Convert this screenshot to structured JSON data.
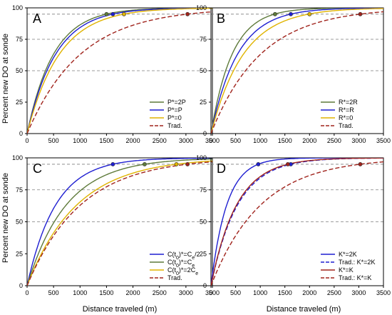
{
  "figure": {
    "ylabel": "Percent new DO at sonde",
    "xlabel": "Distance traveled (m)"
  },
  "colors": {
    "green": "#5e7a3a",
    "blue": "#1f1fd1",
    "yellow": "#e0b400",
    "red": "#a0231c",
    "axis": "#000000",
    "refline": "#7f7f7f"
  },
  "chart_data": [
    {
      "type": "line",
      "panel_label": "A",
      "xlim": [
        0,
        3500
      ],
      "ylim": [
        0,
        100
      ],
      "x_ticks": [
        "0",
        "500",
        "1000",
        "1500",
        "2000",
        "2500",
        "3000",
        "3500"
      ],
      "y_ticks": [
        "0",
        "25",
        "50",
        "75",
        "100"
      ],
      "reference_lines_y": [
        50,
        75,
        95
      ],
      "legend_position": "bottom-right",
      "series": [
        {
          "name": "P*=2P",
          "color": "green",
          "dash": "solid",
          "tau": 500,
          "start": 0,
          "marker_x": 1500
        },
        {
          "name": "P*=P",
          "color": "blue",
          "dash": "solid",
          "tau": 540,
          "start": 0,
          "marker_x": 1620
        },
        {
          "name": "P*=0",
          "color": "yellow",
          "dash": "solid",
          "tau": 610,
          "start": 0,
          "marker_x": 1830
        },
        {
          "name": "Trad.",
          "color": "red",
          "dash": "dashed",
          "tau": 1010,
          "start": 0,
          "marker_x": 3030
        }
      ]
    },
    {
      "type": "line",
      "panel_label": "B",
      "xlim": [
        0,
        3500
      ],
      "ylim": [
        0,
        100
      ],
      "x_ticks": [
        "0",
        "500",
        "1000",
        "1500",
        "2000",
        "2500",
        "3000",
        "3500"
      ],
      "y_ticks": [
        "0",
        "25",
        "50",
        "75",
        "100"
      ],
      "reference_lines_y": [
        50,
        75,
        95
      ],
      "legend_position": "bottom-right",
      "series": [
        {
          "name": "R*=2R",
          "color": "green",
          "dash": "solid",
          "tau": 430,
          "start": 0,
          "marker_x": 1300
        },
        {
          "name": "R*=R",
          "color": "blue",
          "dash": "solid",
          "tau": 540,
          "start": 0,
          "marker_x": 1620
        },
        {
          "name": "R*=0",
          "color": "yellow",
          "dash": "solid",
          "tau": 660,
          "start": 0,
          "marker_x": 2000
        },
        {
          "name": "Trad.",
          "color": "red",
          "dash": "dashed",
          "tau": 1010,
          "start": 0,
          "marker_x": 3030
        }
      ]
    },
    {
      "type": "line",
      "panel_label": "C",
      "xlim": [
        0,
        3500
      ],
      "ylim": [
        0,
        100
      ],
      "x_ticks": [
        "0",
        "500",
        "1000",
        "1500",
        "2000",
        "2500",
        "3000",
        "3500"
      ],
      "y_ticks": [
        "0",
        "25",
        "50",
        "75",
        "100"
      ],
      "reference_lines_y": [
        50,
        75,
        95
      ],
      "legend_position": "bottom-right",
      "series": [
        {
          "name": "C(t0)*=Ce/2",
          "color": "blue",
          "dash": "solid",
          "tau": 540,
          "start": 0,
          "marker_x": 1620
        },
        {
          "name": "C(t0)*=Ce",
          "color": "green",
          "dash": "solid",
          "tau": 740,
          "start": 0,
          "marker_x": 2220
        },
        {
          "name": "C(t0)*=2Ce",
          "color": "yellow",
          "dash": "solid",
          "tau": 940,
          "start": 0,
          "marker_x": 2820
        },
        {
          "name": "Trad.",
          "color": "red",
          "dash": "dashed",
          "tau": 1010,
          "start": 0,
          "marker_x": 3030
        }
      ]
    },
    {
      "type": "line",
      "panel_label": "D",
      "xlim": [
        0,
        3500
      ],
      "ylim": [
        0,
        100
      ],
      "x_ticks": [
        "0",
        "500",
        "1000",
        "1500",
        "2000",
        "2500",
        "3000",
        "3500"
      ],
      "y_ticks": [
        "0",
        "25",
        "50",
        "75",
        "100"
      ],
      "reference_lines_y": [
        50,
        75,
        95
      ],
      "legend_position": "bottom-right",
      "series": [
        {
          "name": "K*=2K",
          "color": "blue",
          "dash": "solid",
          "tau": 320,
          "start": 0,
          "marker_x": 960
        },
        {
          "name": "Trad.: K*=2K",
          "color": "blue",
          "dash": "dashed",
          "tau": 540,
          "start": 0,
          "marker_x": 1620
        },
        {
          "name": "K*=K",
          "color": "red",
          "dash": "solid",
          "tau": 520,
          "start": 0,
          "marker_x": 1560
        },
        {
          "name": "Trad.: K*=K",
          "color": "red",
          "dash": "dashed",
          "tau": 1010,
          "start": 0,
          "marker_x": 3030
        }
      ]
    }
  ]
}
